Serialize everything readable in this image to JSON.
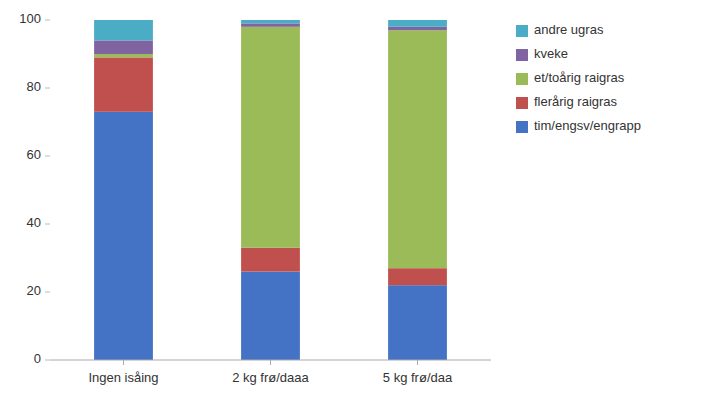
{
  "chart_data": {
    "type": "bar",
    "stacked": true,
    "categories": [
      "Ingen isåing",
      "2 kg frø/daaa",
      "5 kg frø/daa"
    ],
    "series": [
      {
        "name": "tim/engsv/engrapp",
        "color": "#4472C4",
        "values": [
          73,
          26,
          22
        ]
      },
      {
        "name": "flerårig raigras",
        "color": "#C0504D",
        "values": [
          16,
          7,
          5
        ]
      },
      {
        "name": "et/toårig raigras",
        "color": "#9BBB59",
        "values": [
          1,
          65,
          70
        ]
      },
      {
        "name": "kveke",
        "color": "#8064A2",
        "values": [
          4,
          1,
          1
        ]
      },
      {
        "name": "andre ugras",
        "color": "#4BACC6",
        "values": [
          6,
          1,
          2
        ]
      }
    ],
    "ylim": [
      0,
      100
    ],
    "yticks": [
      0,
      20,
      40,
      60,
      80,
      100
    ],
    "grid": false,
    "legend": "right"
  }
}
